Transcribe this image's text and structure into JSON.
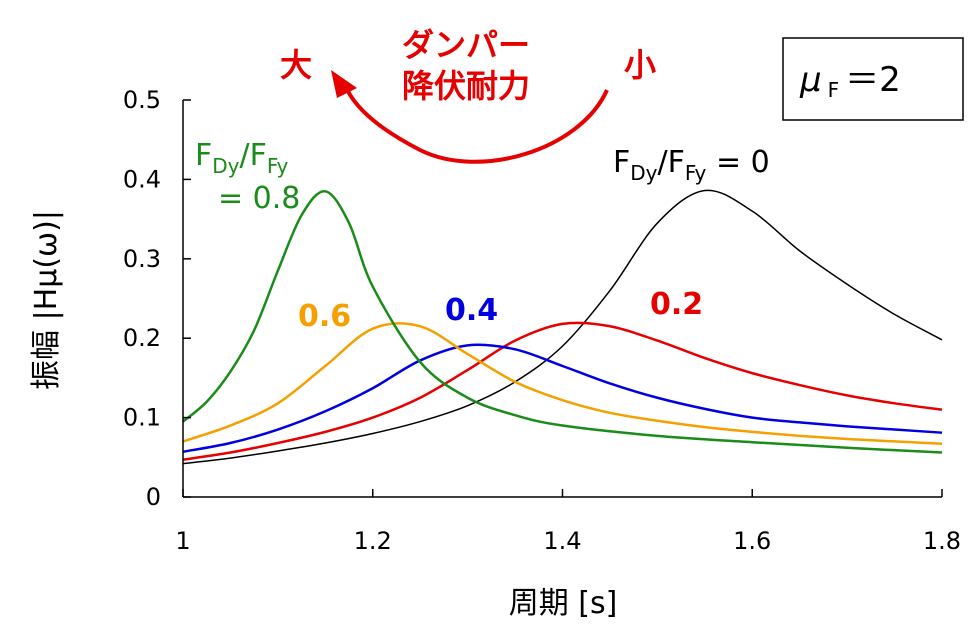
{
  "chart_data": {
    "type": "line",
    "xlabel": "周期 [s]",
    "ylabel": "振幅 |Hμ(ω)|",
    "xlim": [
      1,
      1.8
    ],
    "ylim": [
      0,
      0.5
    ],
    "x_ticks": [
      1,
      1.2,
      1.4,
      1.6,
      1.8
    ],
    "x_tick_labels": [
      "1",
      "1.2",
      "1.4",
      "1.6",
      "1.8"
    ],
    "y_ticks": [
      0,
      0.1,
      0.2,
      0.3,
      0.4,
      0.5
    ],
    "y_tick_labels": [
      "0",
      "0.1",
      "0.2",
      "0.3",
      "0.4",
      "0.5"
    ],
    "grid": false,
    "series": [
      {
        "name": "0",
        "color": "#000000",
        "x": [
          1.0,
          1.05,
          1.1,
          1.15,
          1.2,
          1.25,
          1.3,
          1.35,
          1.4,
          1.45,
          1.5,
          1.55,
          1.6,
          1.65,
          1.7,
          1.75,
          1.8
        ],
        "y": [
          0.042,
          0.049,
          0.058,
          0.068,
          0.08,
          0.095,
          0.115,
          0.145,
          0.19,
          0.26,
          0.345,
          0.386,
          0.36,
          0.31,
          0.268,
          0.23,
          0.198
        ]
      },
      {
        "name": "0.2",
        "color": "#e60000",
        "x": [
          1.0,
          1.05,
          1.1,
          1.15,
          1.2,
          1.25,
          1.3,
          1.35,
          1.4,
          1.45,
          1.5,
          1.55,
          1.6,
          1.65,
          1.7,
          1.75,
          1.8
        ],
        "y": [
          0.047,
          0.056,
          0.068,
          0.082,
          0.1,
          0.125,
          0.16,
          0.197,
          0.218,
          0.215,
          0.197,
          0.175,
          0.156,
          0.141,
          0.128,
          0.118,
          0.11
        ]
      },
      {
        "name": "0.4",
        "color": "#0000e0",
        "x": [
          1.0,
          1.05,
          1.1,
          1.15,
          1.2,
          1.25,
          1.3,
          1.35,
          1.4,
          1.45,
          1.5,
          1.55,
          1.6,
          1.65,
          1.7,
          1.75,
          1.8
        ],
        "y": [
          0.057,
          0.068,
          0.085,
          0.108,
          0.137,
          0.172,
          0.191,
          0.186,
          0.165,
          0.143,
          0.125,
          0.111,
          0.1,
          0.094,
          0.089,
          0.085,
          0.081
        ]
      },
      {
        "name": "0.6",
        "color": "#f5a000",
        "x": [
          1.0,
          1.05,
          1.1,
          1.15,
          1.2,
          1.25,
          1.3,
          1.35,
          1.4,
          1.45,
          1.5,
          1.55,
          1.6,
          1.65,
          1.7,
          1.75,
          1.8
        ],
        "y": [
          0.07,
          0.09,
          0.118,
          0.165,
          0.212,
          0.215,
          0.18,
          0.145,
          0.122,
          0.106,
          0.096,
          0.088,
          0.082,
          0.077,
          0.073,
          0.07,
          0.067
        ]
      },
      {
        "name": "0.8",
        "color": "#1a8c1a",
        "x": [
          1.0,
          1.025,
          1.05,
          1.075,
          1.1,
          1.125,
          1.15,
          1.175,
          1.2,
          1.25,
          1.3,
          1.35,
          1.4,
          1.5,
          1.6,
          1.7,
          1.8
        ],
        "y": [
          0.095,
          0.12,
          0.158,
          0.21,
          0.285,
          0.355,
          0.385,
          0.345,
          0.265,
          0.17,
          0.125,
          0.103,
          0.09,
          0.077,
          0.069,
          0.062,
          0.056
        ]
      }
    ],
    "annotations": {
      "series_label_0_prefix": "F",
      "series_label_0_sub1": "Dy",
      "series_label_0_mid": "/F",
      "series_label_0_sub2": "Fy",
      "series_label_0_suffix": " = 0",
      "series_label_08_line1_prefix": "F",
      "series_label_08_line1_sub1": "Dy",
      "series_label_08_line1_mid": "/F",
      "series_label_08_line1_sub2": "Fy",
      "series_label_08_line2": "= 0.8",
      "label_06": "0.6",
      "label_04": "0.4",
      "label_02": "0.2",
      "arrow_title_line1": "ダンパー",
      "arrow_title_line2": "降伏耐力",
      "arrow_large": "大",
      "arrow_small": "小",
      "box_mu": "μ",
      "box_sub": "F",
      "box_eq": "＝2"
    }
  }
}
